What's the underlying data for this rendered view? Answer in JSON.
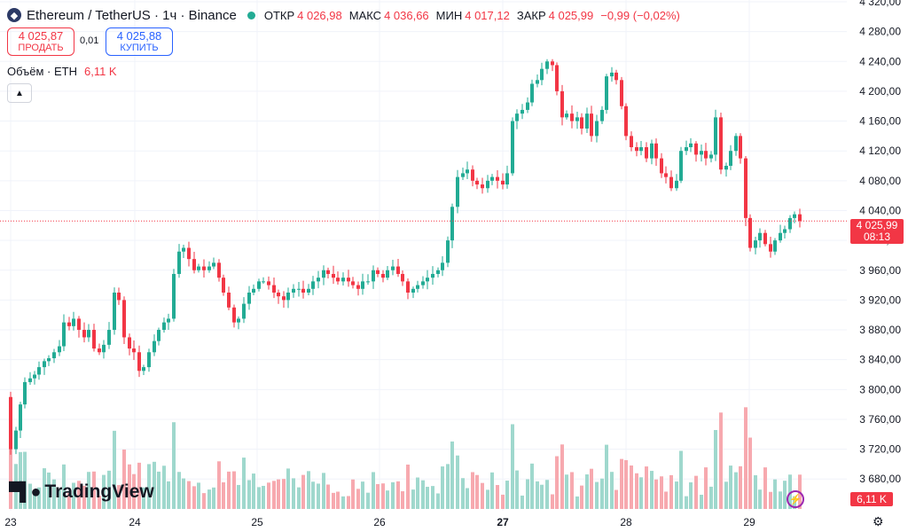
{
  "header": {
    "symbol": "Ethereum / TetherUS · 1ч · Binance",
    "open_label": "ОТКР",
    "open_value": "4 026,98",
    "high_label": "МАКС",
    "high_value": "4 036,66",
    "low_label": "МИН",
    "low_value": "4 017,12",
    "close_label": "ЗАКР",
    "close_value": "4 025,99",
    "change": "−0,99 (−0,02%)"
  },
  "trade": {
    "sell_price": "4 025,87",
    "sell_label": "ПРОДАТЬ",
    "spread": "0,01",
    "buy_price": "4 025,88",
    "buy_label": "КУПИТЬ"
  },
  "volume_legend": {
    "label": "Объём · ETH",
    "value": "6,11 K"
  },
  "current_price_tag": {
    "price": "4 025,99",
    "countdown": "08:13"
  },
  "volume_tag": "6,11 K",
  "branding": "TradingView",
  "colors": {
    "up": "#22ab94",
    "down": "#f23645",
    "up_vol": "#9fd8cd",
    "down_vol": "#f7a9af",
    "grid": "#f0f3fa"
  },
  "icons": {
    "logo": "ethereum-logo-icon",
    "collapse": "chevron-up-icon",
    "bolt": "lightning-icon",
    "settings": "gear-icon"
  },
  "chart_data": {
    "type": "candlestick",
    "y_range": [
      3660,
      4320
    ],
    "price_ticks": [
      "4 320,00",
      "4 280,00",
      "4 240,00",
      "4 200,00",
      "4 160,00",
      "4 120,00",
      "4 080,00",
      "4 040,00",
      "4 000,00",
      "3 960,00",
      "3 920,00",
      "3 880,00",
      "3 840,00",
      "3 800,00",
      "3 760,00",
      "3 720,00",
      "3 680,00"
    ],
    "x_labels": [
      "23",
      "24",
      "25",
      "26",
      "27",
      "28",
      "29"
    ],
    "current_price": 4025.99,
    "close_path": [
      [
        0,
        3790
      ],
      [
        6,
        3720
      ],
      [
        12,
        3745
      ],
      [
        17,
        3780
      ],
      [
        22,
        3810
      ],
      [
        28,
        3815
      ],
      [
        33,
        3820
      ],
      [
        38,
        3830
      ],
      [
        44,
        3838
      ],
      [
        49,
        3842
      ],
      [
        55,
        3850
      ],
      [
        61,
        3858
      ],
      [
        66,
        3890
      ],
      [
        72,
        3885
      ],
      [
        77,
        3895
      ],
      [
        83,
        3880
      ],
      [
        89,
        3870
      ],
      [
        94,
        3880
      ],
      [
        100,
        3855
      ],
      [
        106,
        3850
      ],
      [
        111,
        3860
      ],
      [
        117,
        3880
      ],
      [
        123,
        3930
      ],
      [
        128,
        3920
      ],
      [
        134,
        3870
      ],
      [
        140,
        3855
      ],
      [
        145,
        3850
      ],
      [
        151,
        3825
      ],
      [
        156,
        3830
      ],
      [
        162,
        3850
      ],
      [
        168,
        3865
      ],
      [
        173,
        3880
      ],
      [
        179,
        3890
      ],
      [
        184,
        3895
      ],
      [
        190,
        3955
      ],
      [
        196,
        3985
      ],
      [
        201,
        3990
      ],
      [
        207,
        3975
      ],
      [
        213,
        3960
      ],
      [
        218,
        3965
      ],
      [
        224,
        3960
      ],
      [
        230,
        3965
      ],
      [
        235,
        3970
      ],
      [
        241,
        3950
      ],
      [
        246,
        3930
      ],
      [
        252,
        3910
      ],
      [
        258,
        3890
      ],
      [
        263,
        3895
      ],
      [
        269,
        3915
      ],
      [
        275,
        3930
      ],
      [
        280,
        3935
      ],
      [
        286,
        3945
      ],
      [
        291,
        3945
      ],
      [
        297,
        3940
      ],
      [
        303,
        3930
      ],
      [
        308,
        3925
      ],
      [
        314,
        3920
      ],
      [
        319,
        3930
      ],
      [
        325,
        3935
      ],
      [
        331,
        3935
      ],
      [
        336,
        3930
      ],
      [
        342,
        3935
      ],
      [
        347,
        3945
      ],
      [
        353,
        3950
      ],
      [
        359,
        3960
      ],
      [
        364,
        3955
      ],
      [
        370,
        3950
      ],
      [
        375,
        3945
      ],
      [
        381,
        3950
      ],
      [
        387,
        3945
      ],
      [
        392,
        3940
      ],
      [
        398,
        3935
      ],
      [
        403,
        3945
      ],
      [
        409,
        3945
      ],
      [
        415,
        3960
      ],
      [
        420,
        3955
      ],
      [
        426,
        3950
      ],
      [
        431,
        3960
      ],
      [
        437,
        3965
      ],
      [
        443,
        3955
      ],
      [
        448,
        3945
      ],
      [
        454,
        3930
      ],
      [
        460,
        3935
      ],
      [
        465,
        3940
      ],
      [
        471,
        3945
      ],
      [
        476,
        3950
      ],
      [
        482,
        3955
      ],
      [
        488,
        3960
      ],
      [
        493,
        3970
      ],
      [
        499,
        4000
      ],
      [
        504,
        4045
      ],
      [
        510,
        4085
      ],
      [
        516,
        4090
      ],
      [
        521,
        4095
      ],
      [
        527,
        4080
      ],
      [
        532,
        4075
      ],
      [
        538,
        4070
      ],
      [
        544,
        4080
      ],
      [
        549,
        4085
      ],
      [
        555,
        4080
      ],
      [
        561,
        4075
      ],
      [
        566,
        4090
      ],
      [
        572,
        4160
      ],
      [
        577,
        4170
      ],
      [
        583,
        4175
      ],
      [
        589,
        4185
      ],
      [
        594,
        4210
      ],
      [
        600,
        4215
      ],
      [
        605,
        4230
      ],
      [
        611,
        4240
      ],
      [
        617,
        4235
      ],
      [
        622,
        4200
      ],
      [
        628,
        4165
      ],
      [
        633,
        4170
      ],
      [
        639,
        4160
      ],
      [
        645,
        4165
      ],
      [
        650,
        4150
      ],
      [
        656,
        4170
      ],
      [
        661,
        4140
      ],
      [
        667,
        4160
      ],
      [
        673,
        4175
      ],
      [
        678,
        4220
      ],
      [
        684,
        4225
      ],
      [
        689,
        4215
      ],
      [
        695,
        4180
      ],
      [
        700,
        4140
      ],
      [
        706,
        4125
      ],
      [
        712,
        4120
      ],
      [
        717,
        4125
      ],
      [
        723,
        4110
      ],
      [
        729,
        4130
      ],
      [
        734,
        4110
      ],
      [
        740,
        4090
      ],
      [
        745,
        4085
      ],
      [
        751,
        4070
      ],
      [
        757,
        4080
      ],
      [
        762,
        4120
      ],
      [
        768,
        4125
      ],
      [
        773,
        4130
      ],
      [
        779,
        4115
      ],
      [
        785,
        4120
      ],
      [
        790,
        4110
      ],
      [
        796,
        4115
      ],
      [
        801,
        4165
      ],
      [
        807,
        4095
      ],
      [
        813,
        4100
      ],
      [
        818,
        4120
      ],
      [
        824,
        4140
      ],
      [
        829,
        4110
      ],
      [
        835,
        4030
      ],
      [
        840,
        3990
      ],
      [
        846,
        4000
      ],
      [
        851,
        4010
      ],
      [
        857,
        3995
      ],
      [
        863,
        3985
      ],
      [
        868,
        4000
      ],
      [
        874,
        4010
      ],
      [
        879,
        4015
      ],
      [
        885,
        4030
      ],
      [
        890,
        4035
      ],
      [
        896,
        4026
      ]
    ]
  }
}
